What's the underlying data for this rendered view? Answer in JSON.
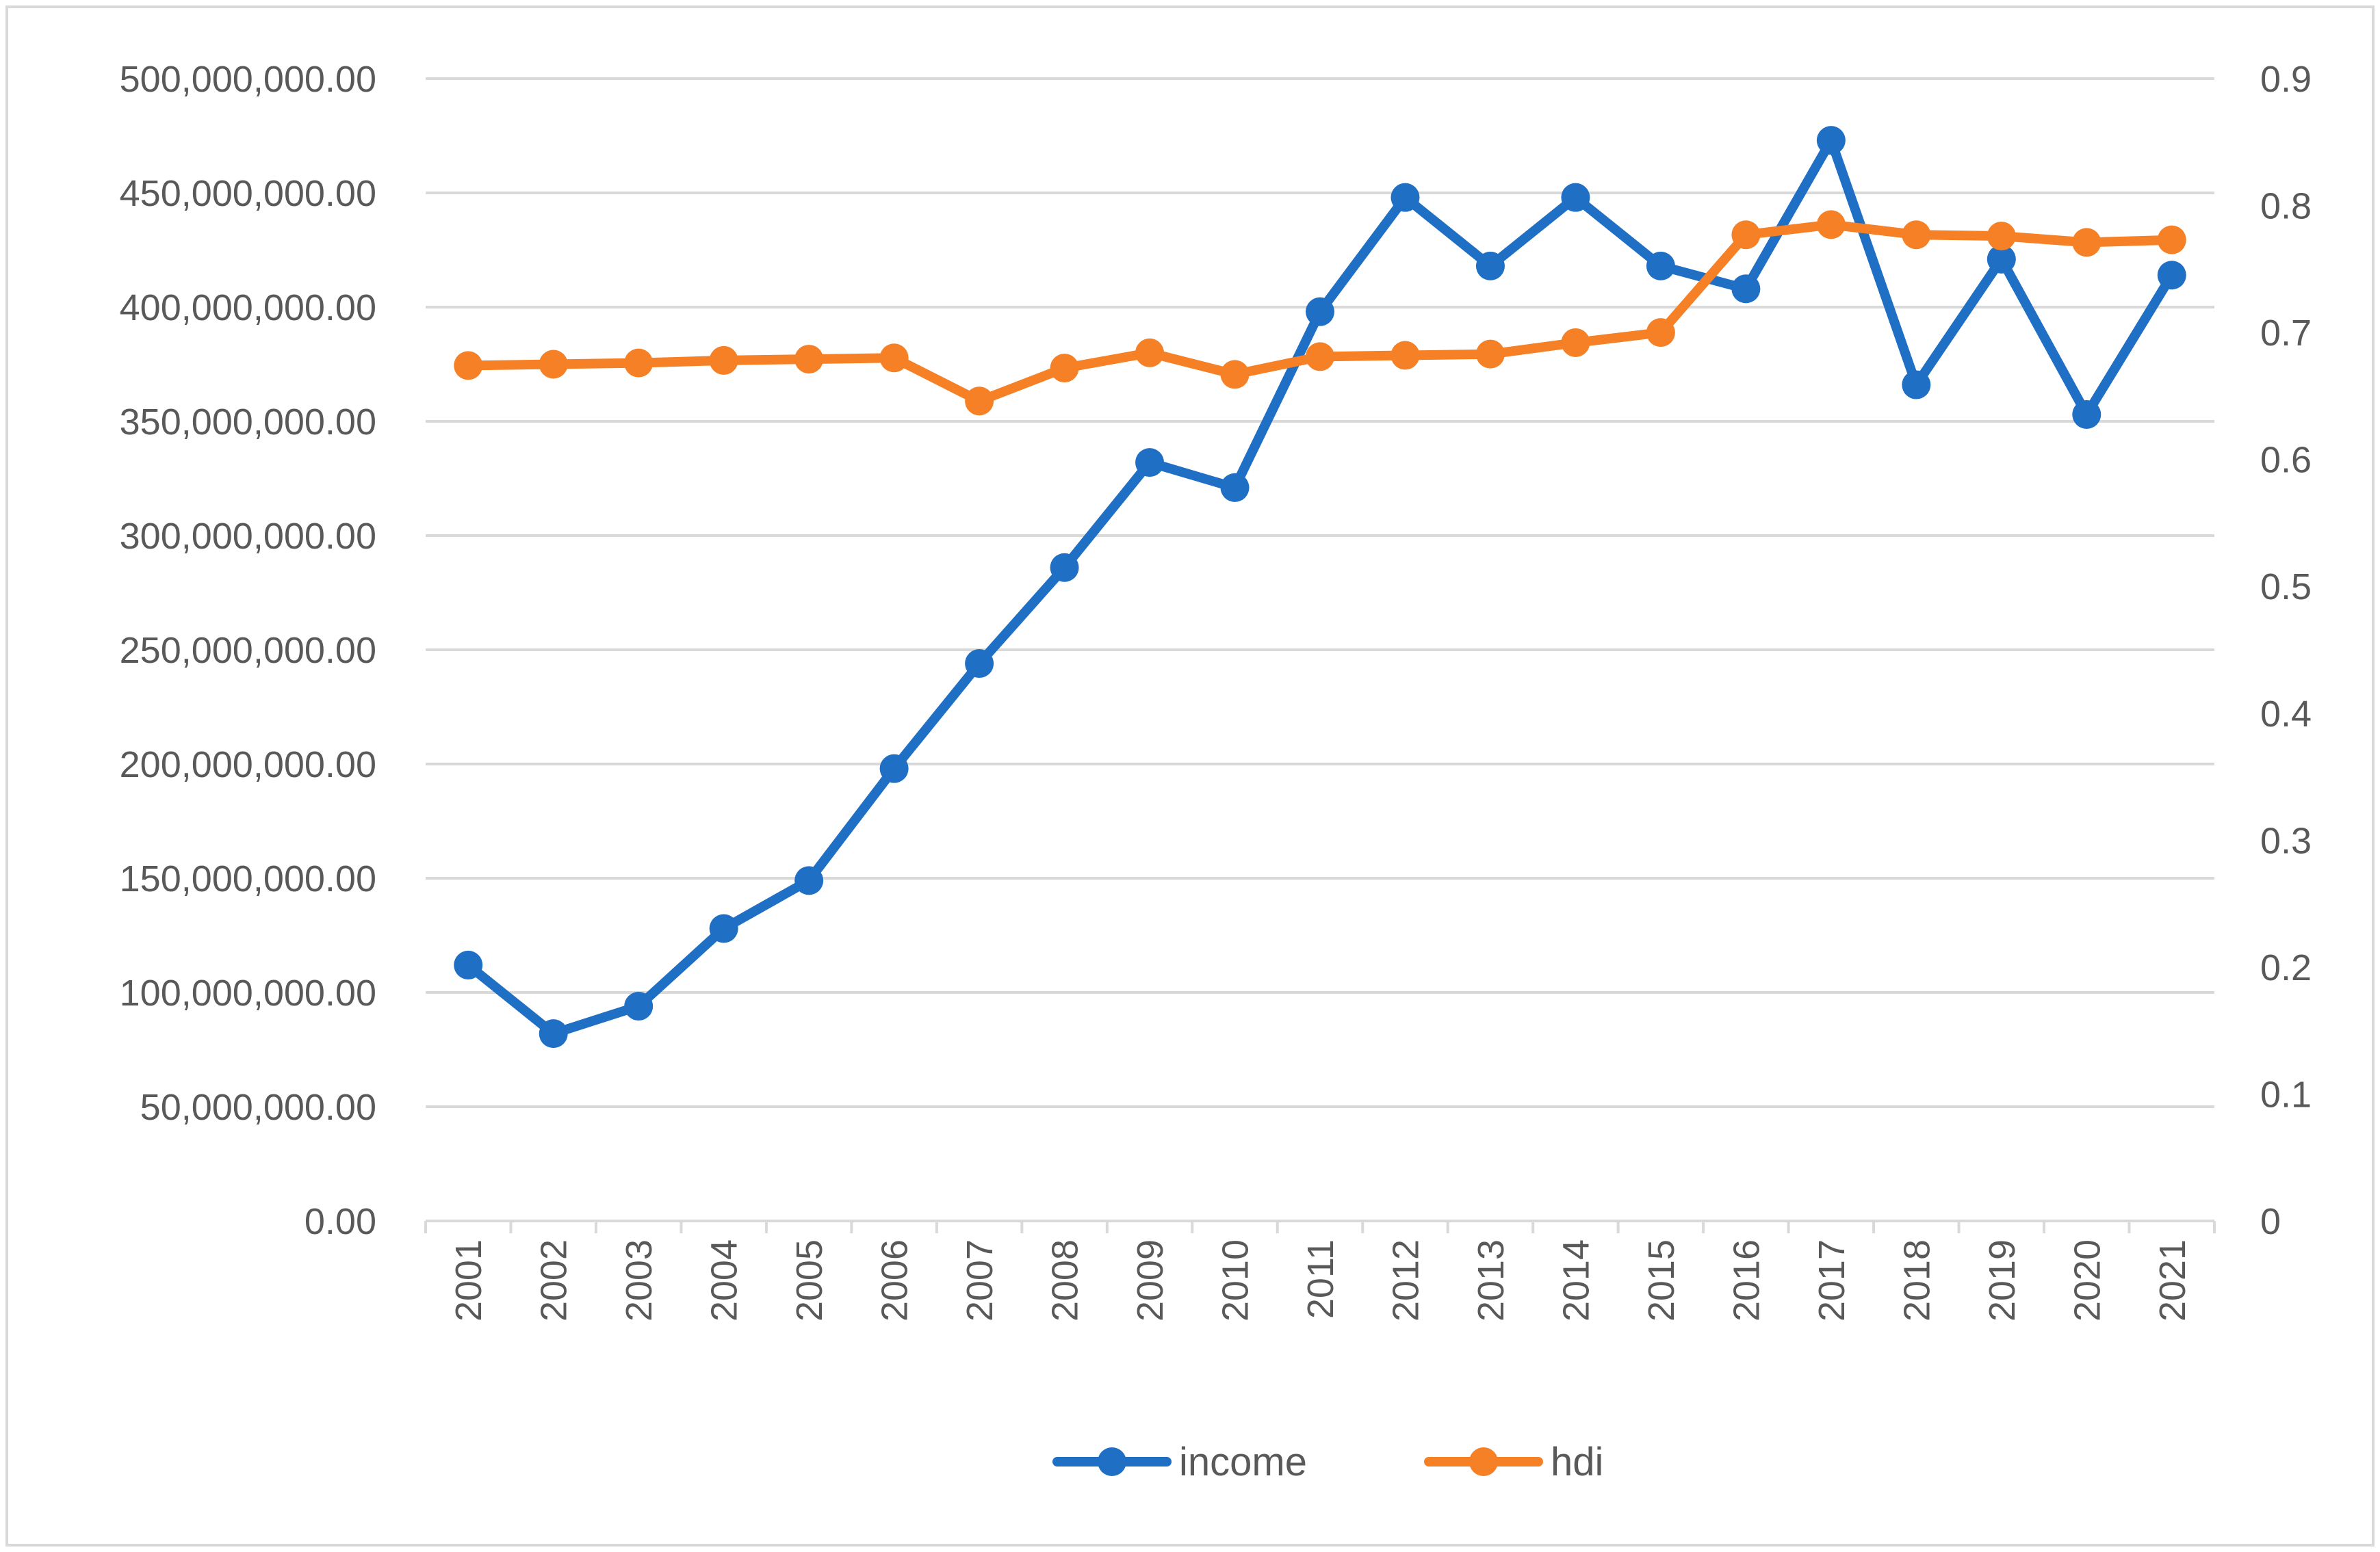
{
  "chart_data": {
    "type": "line",
    "title": "",
    "xlabel": "",
    "ylabel": "",
    "y2label": "",
    "x": [
      "2001",
      "2002",
      "2003",
      "2004",
      "2005",
      "2006",
      "2007",
      "2008",
      "2009",
      "2010",
      "2011",
      "2012",
      "2013",
      "2014",
      "2015",
      "2016",
      "2017",
      "2018",
      "2019",
      "2020",
      "2021"
    ],
    "y_left": {
      "ylim": [
        0,
        500000000
      ],
      "tick_step": 50000000,
      "ticks": [
        "0.00",
        "50,000,000.00",
        "100,000,000.00",
        "150,000,000.00",
        "200,000,000.00",
        "250,000,000.00",
        "300,000,000.00",
        "350,000,000.00",
        "400,000,000.00",
        "450,000,000.00",
        "500,000,000.00"
      ]
    },
    "y_right": {
      "ylim": [
        0,
        0.9
      ],
      "tick_step": 0.1,
      "ticks": [
        "0",
        "0.1",
        "0.2",
        "0.3",
        "0.4",
        "0.5",
        "0.6",
        "0.7",
        "0.8",
        "0.9"
      ]
    },
    "series": [
      {
        "name": "income",
        "axis": "left",
        "color": "#1F6FC5",
        "values": [
          112000000,
          82000000,
          94000000,
          128000000,
          149000000,
          198000000,
          244000000,
          286000000,
          332000000,
          321000000,
          398000000,
          448000000,
          418000000,
          448000000,
          418000000,
          408000000,
          473000000,
          366000000,
          421000000,
          353000000,
          414000000
        ]
      },
      {
        "name": "hdi",
        "axis": "right",
        "color": "#F58025",
        "values": [
          0.674,
          0.675,
          0.676,
          0.678,
          0.679,
          0.68,
          0.646,
          0.672,
          0.684,
          0.667,
          0.681,
          0.682,
          0.683,
          0.692,
          0.7,
          0.777,
          0.785,
          0.777,
          0.776,
          0.771,
          0.773
        ]
      }
    ],
    "grid": true,
    "legend_position": "bottom-center"
  }
}
